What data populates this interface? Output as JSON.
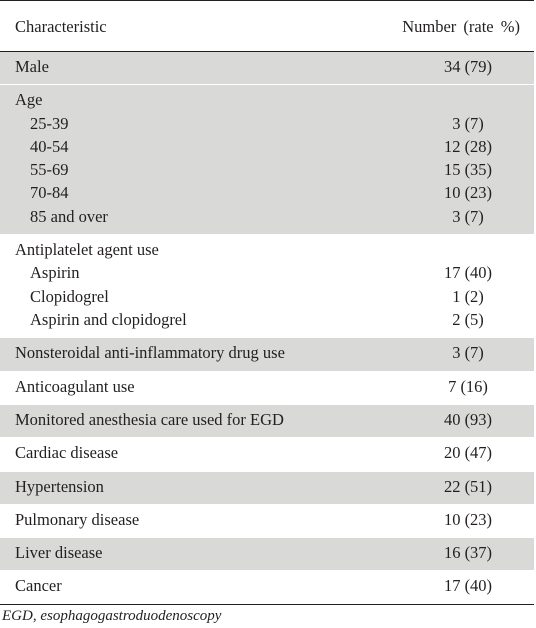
{
  "header": {
    "characteristic": "Characteristic",
    "number": "Number  (rate %)"
  },
  "groups": [
    {
      "shade": true,
      "rows": [
        {
          "label": "Male",
          "value": "34 (79)",
          "sub": false
        }
      ]
    },
    {
      "shade": true,
      "rows": [
        {
          "label": "Age",
          "value": "",
          "sub": false
        },
        {
          "label": "25-39",
          "value": "3 (7)",
          "sub": true
        },
        {
          "label": "40-54",
          "value": "12 (28)",
          "sub": true
        },
        {
          "label": "55-69",
          "value": "15 (35)",
          "sub": true
        },
        {
          "label": "70-84",
          "value": "10 (23)",
          "sub": true
        },
        {
          "label": "85 and over",
          "value": "3 (7)",
          "sub": true
        }
      ]
    },
    {
      "shade": false,
      "rows": [
        {
          "label": "Antiplatelet agent use",
          "value": "",
          "sub": false
        },
        {
          "label": "Aspirin",
          "value": "17 (40)",
          "sub": true
        },
        {
          "label": "Clopidogrel",
          "value": "1 (2)",
          "sub": true
        },
        {
          "label": "Aspirin and clopidogrel",
          "value": "2 (5)",
          "sub": true
        }
      ]
    },
    {
      "shade": true,
      "rows": [
        {
          "label": "Nonsteroidal anti-inflammatory drug use",
          "value": "3 (7)",
          "sub": false
        }
      ]
    },
    {
      "shade": false,
      "rows": [
        {
          "label": "Anticoagulant use",
          "value": "7 (16)",
          "sub": false
        }
      ]
    },
    {
      "shade": true,
      "rows": [
        {
          "label": "Monitored anesthesia care used for EGD",
          "value": "40 (93)",
          "sub": false
        }
      ]
    },
    {
      "shade": false,
      "rows": [
        {
          "label": "Cardiac disease",
          "value": "20 (47)",
          "sub": false
        }
      ]
    },
    {
      "shade": true,
      "rows": [
        {
          "label": "Hypertension",
          "value": "22 (51)",
          "sub": false
        }
      ]
    },
    {
      "shade": false,
      "rows": [
        {
          "label": "Pulmonary disease",
          "value": "10 (23)",
          "sub": false
        }
      ]
    },
    {
      "shade": true,
      "rows": [
        {
          "label": "Liver disease",
          "value": "16 (37)",
          "sub": false
        }
      ]
    },
    {
      "shade": false,
      "rows": [
        {
          "label": "Cancer",
          "value": "17 (40)",
          "sub": false
        }
      ]
    }
  ],
  "footnote": "EGD, esophagogastroduodenoscopy"
}
